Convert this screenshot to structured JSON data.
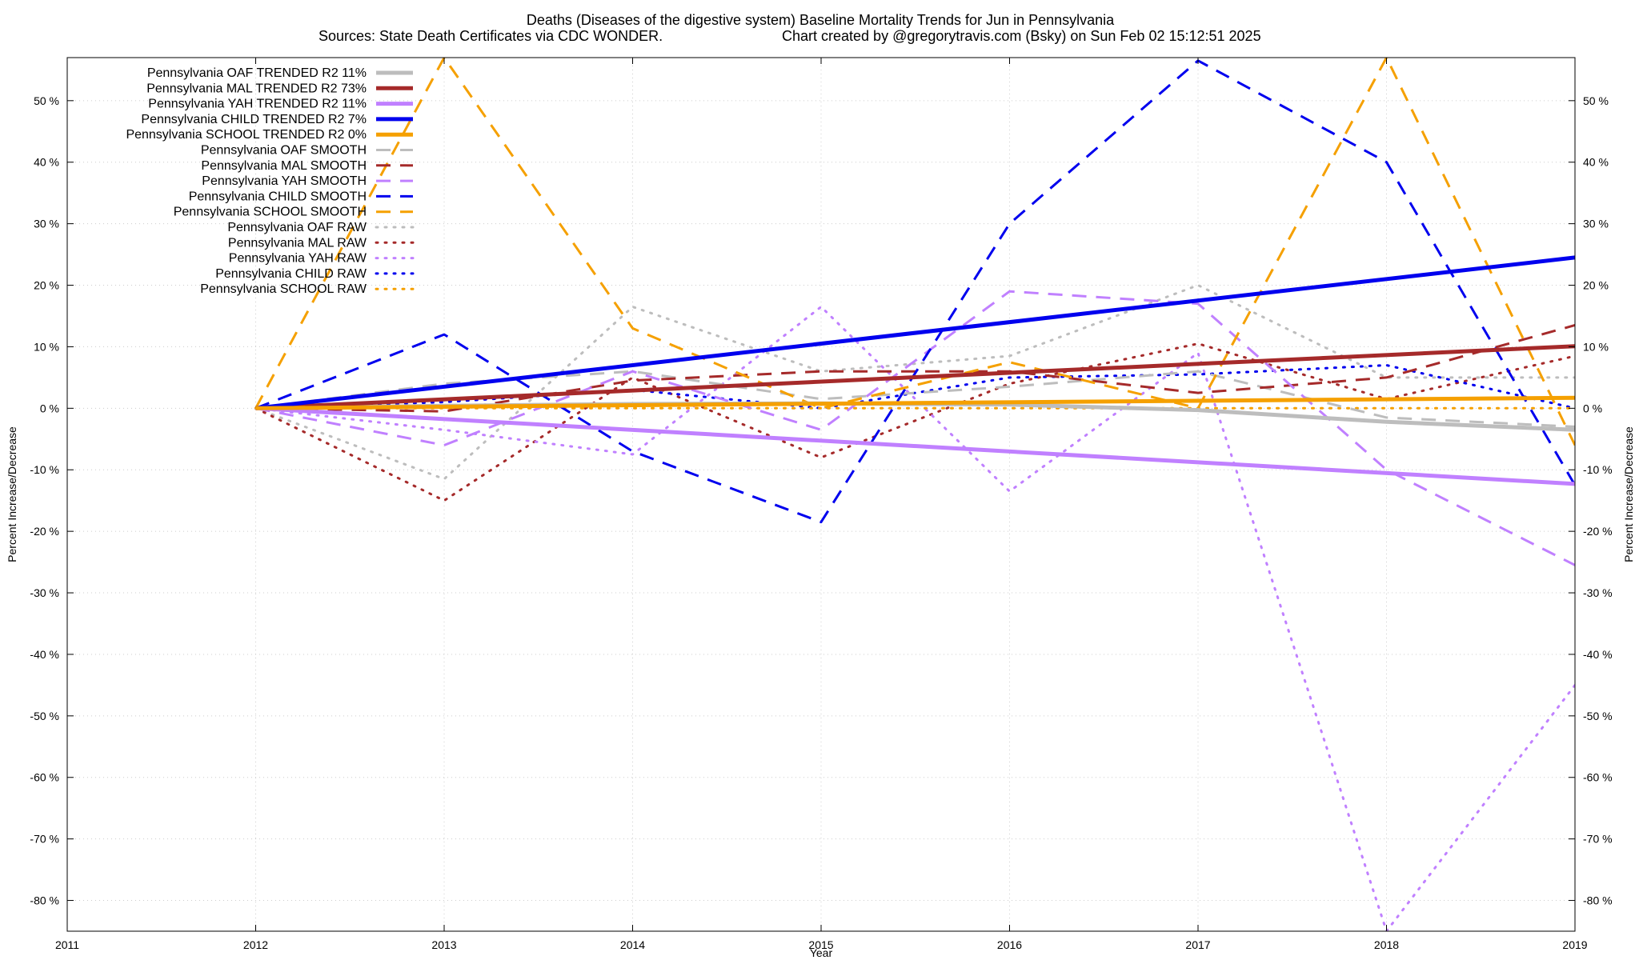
{
  "chart_data": {
    "type": "line",
    "title": "Deaths (Diseases of the digestive system)  Baseline Mortality Trends for Jun in Pennsylvania",
    "subtitle_left": "Sources: State Death Certificates via CDC WONDER.",
    "subtitle_right": "Chart created by @gregorytravis.com (Bsky) on Sun Feb 02 15:12:51 2025",
    "xlabel": "Year",
    "ylabel": "Percent Increase/Decrease",
    "xlim": [
      2011,
      2019
    ],
    "ylim": [
      -85,
      57
    ],
    "x_ticks": [
      2011,
      2012,
      2013,
      2014,
      2015,
      2016,
      2017,
      2018,
      2019
    ],
    "y_ticks": [
      -80,
      -70,
      -60,
      -50,
      -40,
      -30,
      -20,
      -10,
      0,
      10,
      20,
      30,
      40,
      50
    ],
    "y_tick_suffix": " %",
    "grid": true,
    "legend_position": "top-left",
    "series": [
      {
        "name": "Pennsylvania OAF TRENDED R2  11%",
        "style": "solid",
        "width": 5,
        "color": "#bdbdbd",
        "x": [
          2012,
          2013,
          2014,
          2015,
          2016,
          2017,
          2018,
          2019
        ],
        "y": [
          0,
          0.4,
          0.7,
          0.8,
          0.6,
          -0.3,
          -2.2,
          -3.5
        ]
      },
      {
        "name": "Pennsylvania MAL TRENDED R2  73%",
        "style": "solid",
        "width": 5,
        "color": "#a52a2a",
        "x": [
          2012,
          2019
        ],
        "y": [
          0,
          10.1
        ]
      },
      {
        "name": "Pennsylvania YAH TRENDED R2  11%",
        "style": "solid",
        "width": 5,
        "color": "#c080ff",
        "x": [
          2012,
          2019
        ],
        "y": [
          0,
          -12.3
        ]
      },
      {
        "name": "Pennsylvania CHILD TRENDED R2   7%",
        "style": "solid",
        "width": 5,
        "color": "#0000ee",
        "x": [
          2012,
          2019
        ],
        "y": [
          0,
          24.5
        ]
      },
      {
        "name": "Pennsylvania SCHOOL TRENDED R2   0%",
        "style": "solid",
        "width": 5,
        "color": "#f5a000",
        "x": [
          2012,
          2019
        ],
        "y": [
          0,
          1.7
        ]
      },
      {
        "name": "Pennsylvania OAF SMOOTH",
        "style": "dashed",
        "width": 3,
        "color": "#bdbdbd",
        "x": [
          2012,
          2013,
          2014,
          2015,
          2016,
          2017,
          2018,
          2019
        ],
        "y": [
          0,
          4,
          6,
          1.5,
          3.5,
          6,
          -1.5,
          -3
        ]
      },
      {
        "name": "Pennsylvania MAL SMOOTH",
        "style": "dashed",
        "width": 3,
        "color": "#a52a2a",
        "x": [
          2012,
          2013,
          2014,
          2015,
          2016,
          2017,
          2018,
          2019
        ],
        "y": [
          0,
          -0.5,
          4.5,
          6,
          6,
          2.5,
          5,
          13.5
        ]
      },
      {
        "name": "Pennsylvania YAH SMOOTH",
        "style": "dashed",
        "width": 3,
        "color": "#c080ff",
        "x": [
          2012,
          2013,
          2014,
          2015,
          2016,
          2017,
          2018,
          2019
        ],
        "y": [
          0,
          -6,
          6,
          -3.5,
          19,
          17,
          -10,
          -25.5
        ]
      },
      {
        "name": "Pennsylvania CHILD SMOOTH",
        "style": "dashed",
        "width": 3,
        "color": "#0000ee",
        "x": [
          2012,
          2013,
          2014,
          2015,
          2016,
          2017,
          2018,
          2019
        ],
        "y": [
          0,
          12,
          -7,
          -18.5,
          30,
          56.5,
          40,
          -12.5
        ]
      },
      {
        "name": "Pennsylvania SCHOOL SMOOTH",
        "style": "dashed",
        "width": 3,
        "color": "#f5a000",
        "x": [
          2012,
          2013,
          2014,
          2015,
          2016,
          2017,
          2018,
          2019
        ],
        "y": [
          0,
          57,
          13,
          0,
          7.5,
          0,
          57,
          -6
        ]
      },
      {
        "name": "Pennsylvania OAF RAW",
        "style": "dotted",
        "width": 3,
        "color": "#bdbdbd",
        "x": [
          2012,
          2013,
          2014,
          2015,
          2016,
          2017,
          2018,
          2019
        ],
        "y": [
          0,
          -11.5,
          16.5,
          6,
          8.5,
          20,
          5,
          5
        ]
      },
      {
        "name": "Pennsylvania MAL RAW",
        "style": "dotted",
        "width": 3,
        "color": "#a52a2a",
        "x": [
          2012,
          2013,
          2014,
          2015,
          2016,
          2017,
          2018,
          2019
        ],
        "y": [
          0,
          -15,
          5,
          -8,
          4,
          10.5,
          1.5,
          8.5
        ]
      },
      {
        "name": "Pennsylvania YAH RAW",
        "style": "dotted",
        "width": 3,
        "color": "#c080ff",
        "x": [
          2012,
          2013,
          2014,
          2015,
          2016,
          2017,
          2018,
          2019
        ],
        "y": [
          0,
          -3.5,
          -7.5,
          16.5,
          -13.5,
          9,
          -85,
          -45
        ]
      },
      {
        "name": "Pennsylvania CHILD RAW",
        "style": "dotted",
        "width": 3,
        "color": "#0000ee",
        "x": [
          2012,
          2013,
          2014,
          2015,
          2016,
          2017,
          2018,
          2019
        ],
        "y": [
          0,
          1,
          3,
          0,
          5,
          5.5,
          7,
          0
        ]
      },
      {
        "name": "Pennsylvania SCHOOL RAW",
        "style": "dotted",
        "width": 3,
        "color": "#f5a000",
        "x": [
          2012,
          2013,
          2014,
          2015,
          2016,
          2017,
          2018,
          2019
        ],
        "y": [
          0,
          0,
          0,
          0,
          0,
          0,
          0,
          0
        ]
      }
    ]
  }
}
